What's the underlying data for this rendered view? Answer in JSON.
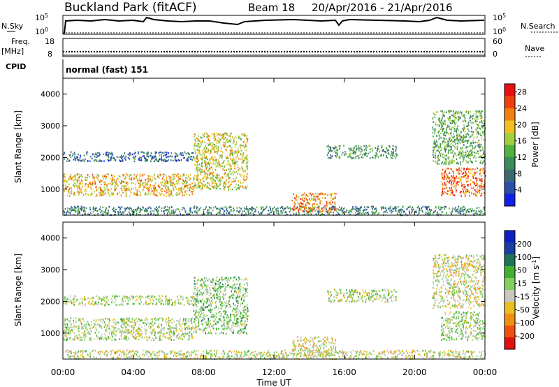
{
  "header": {
    "station": "Buckland Park (fitACF)",
    "beam": "Beam 18",
    "date_range": "20/Apr/2016 - 21/Apr/2016"
  },
  "summary": {
    "nsky_label": "N.Sky",
    "nsky_ticks": [
      "10^5",
      "10^0"
    ],
    "nsearch_label": "N.Search",
    "nsearch_ticks": [
      "10^5",
      "10^0"
    ],
    "freq_label": "Freq.",
    "freq_unit": "[MHz]",
    "freq_ticks": [
      "18",
      "8"
    ],
    "nave_label": "Nave",
    "nave_ticks": [
      "60",
      "0"
    ],
    "cpid_label": "CPID",
    "cpid_value": "normal (fast) 151"
  },
  "colors": {
    "power": [
      "#1020e8",
      "#2850a8",
      "#3a6a70",
      "#3a8a5a",
      "#50b040",
      "#a0d040",
      "#f0c020",
      "#f08010",
      "#f04010",
      "#e81010"
    ],
    "velocity": [
      "#1020c0",
      "#1840a0",
      "#20705a",
      "#40b030",
      "#80d060",
      "#c8c8c0",
      "#e8c020",
      "#f09010",
      "#f05010",
      "#e01010"
    ]
  },
  "chart_data": [
    {
      "type": "heatmap",
      "title": "Power",
      "ylabel": "Slant Range [km]",
      "xlabel": "",
      "ylim": [
        180,
        4500
      ],
      "yticks": [
        "1000",
        "2000",
        "3000",
        "4000"
      ],
      "x_ticks": [
        "00:00",
        "04:00",
        "08:00",
        "12:00",
        "16:00",
        "20:00",
        "00:00"
      ],
      "colorbar": {
        "label": "Power [dB]",
        "ticks": [
          "4",
          "8",
          "12",
          "16",
          "20",
          "24",
          "28"
        ],
        "range": [
          0,
          30
        ]
      },
      "regions": [
        {
          "t0": 0.0,
          "t1": 7.4,
          "r0": 800,
          "r1": 1500,
          "value": 20
        },
        {
          "t0": 0.0,
          "t1": 7.4,
          "r0": 1900,
          "r1": 2200,
          "value": 7
        },
        {
          "t0": 0.0,
          "t1": 24.0,
          "r0": 200,
          "r1": 480,
          "value": 9
        },
        {
          "t0": 7.4,
          "t1": 10.5,
          "r0": 1000,
          "r1": 2800,
          "value": 18
        },
        {
          "t0": 13.0,
          "t1": 15.5,
          "r0": 300,
          "r1": 900,
          "value": 22
        },
        {
          "t0": 15.0,
          "t1": 19.0,
          "r0": 2000,
          "r1": 2400,
          "value": 11
        },
        {
          "t0": 21.5,
          "t1": 24.0,
          "r0": 800,
          "r1": 1700,
          "value": 24
        },
        {
          "t0": 21.0,
          "t1": 24.0,
          "r0": 1800,
          "r1": 3500,
          "value": 13
        }
      ]
    },
    {
      "type": "heatmap",
      "title": "Velocity",
      "ylabel": "Slant Range [km]",
      "xlabel": "Time UT",
      "ylim": [
        180,
        4500
      ],
      "yticks": [
        "1000",
        "2000",
        "3000",
        "4000"
      ],
      "x_ticks": [
        "00:00",
        "04:00",
        "08:00",
        "12:00",
        "16:00",
        "20:00",
        "00:00"
      ],
      "colorbar": {
        "label": "Velocity [m s^-1]",
        "ticks": [
          "200",
          "100",
          "50",
          "15",
          "-15",
          "-50",
          "-100",
          "-200"
        ],
        "range": [
          -250,
          250
        ]
      },
      "regions": [
        {
          "t0": 0.0,
          "t1": 7.4,
          "r0": 800,
          "r1": 1500,
          "value": 0
        },
        {
          "t0": 0.0,
          "t1": 7.4,
          "r0": 1900,
          "r1": 2200,
          "value": 10
        },
        {
          "t0": 0.0,
          "t1": 24.0,
          "r0": 200,
          "r1": 480,
          "value": 20
        },
        {
          "t0": 7.4,
          "t1": 10.5,
          "r0": 1000,
          "r1": 2800,
          "value": -30
        },
        {
          "t0": 13.0,
          "t1": 15.5,
          "r0": 300,
          "r1": 900,
          "value": 40
        },
        {
          "t0": 15.0,
          "t1": 19.0,
          "r0": 2000,
          "r1": 2400,
          "value": 5
        },
        {
          "t0": 21.5,
          "t1": 24.0,
          "r0": 800,
          "r1": 1700,
          "value": -10
        },
        {
          "t0": 21.0,
          "t1": 24.0,
          "r0": 1800,
          "r1": 3500,
          "value": 30
        }
      ]
    }
  ]
}
